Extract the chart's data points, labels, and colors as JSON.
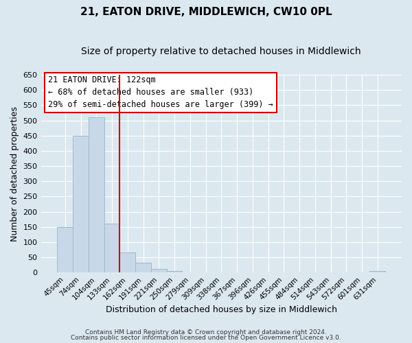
{
  "title": "21, EATON DRIVE, MIDDLEWICH, CW10 0PL",
  "subtitle": "Size of property relative to detached houses in Middlewich",
  "xlabel": "Distribution of detached houses by size in Middlewich",
  "ylabel": "Number of detached properties",
  "bar_labels": [
    "45sqm",
    "74sqm",
    "104sqm",
    "133sqm",
    "162sqm",
    "191sqm",
    "221sqm",
    "250sqm",
    "279sqm",
    "309sqm",
    "338sqm",
    "367sqm",
    "396sqm",
    "426sqm",
    "455sqm",
    "484sqm",
    "514sqm",
    "543sqm",
    "572sqm",
    "601sqm",
    "631sqm"
  ],
  "bar_values": [
    150,
    450,
    510,
    160,
    65,
    32,
    12,
    6,
    0,
    0,
    0,
    0,
    0,
    0,
    0,
    0,
    0,
    0,
    0,
    0,
    5
  ],
  "bar_color": "#c8d8e8",
  "bar_edgecolor": "#a0b8cc",
  "vline_color": "#cc0000",
  "vline_xindex": 3.5,
  "ylim": [
    0,
    650
  ],
  "yticks": [
    0,
    50,
    100,
    150,
    200,
    250,
    300,
    350,
    400,
    450,
    500,
    550,
    600,
    650
  ],
  "annotation_title": "21 EATON DRIVE: 122sqm",
  "annotation_line1": "← 68% of detached houses are smaller (933)",
  "annotation_line2": "29% of semi-detached houses are larger (399) →",
  "annotation_box_facecolor": "#ffffff",
  "annotation_box_edgecolor": "#cc0000",
  "footer_line1": "Contains HM Land Registry data © Crown copyright and database right 2024.",
  "footer_line2": "Contains public sector information licensed under the Open Government Licence v3.0.",
  "background_color": "#dce8f0",
  "plot_bg_color": "#dce8f0",
  "title_fontsize": 11,
  "subtitle_fontsize": 10,
  "ylabel_fontsize": 9,
  "xlabel_fontsize": 9,
  "ytick_fontsize": 8,
  "xtick_fontsize": 7.5,
  "footer_fontsize": 6.5
}
